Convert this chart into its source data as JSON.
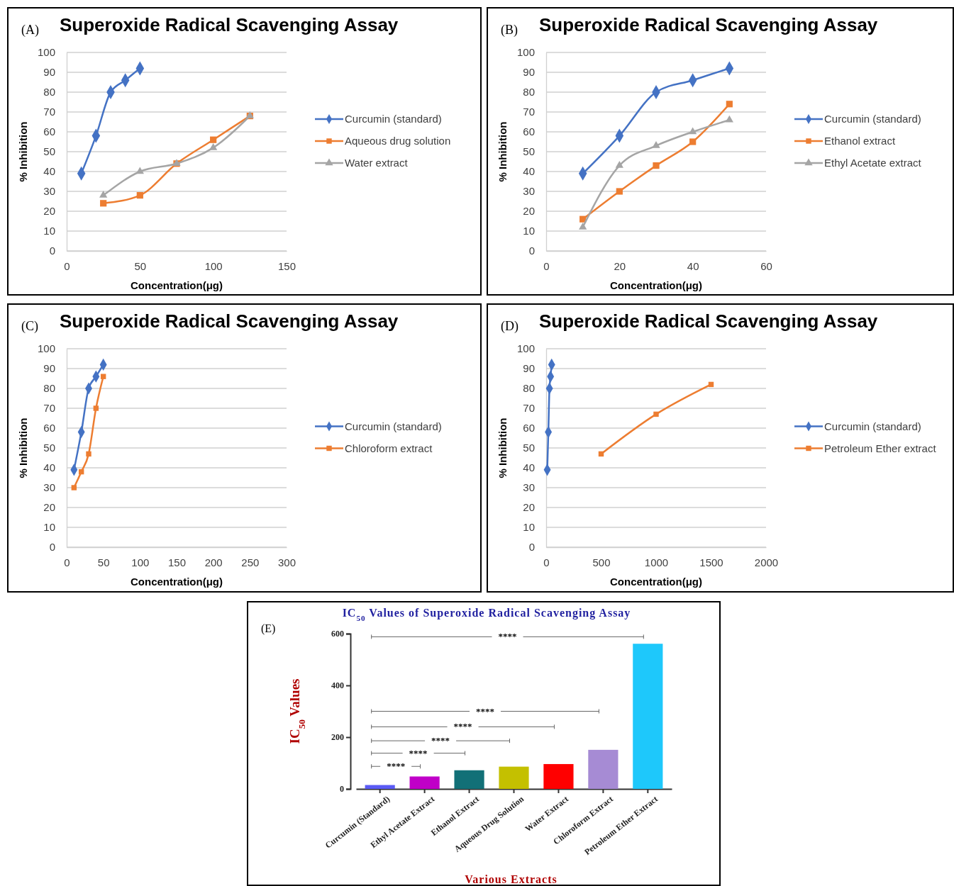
{
  "chart_data": [
    {
      "type": "line",
      "title": "Superoxide Radical Scavenging Assay",
      "xlabel": "Concentration(μg)",
      "ylabel": "% Inhibition",
      "annotations": [
        "(A)"
      ],
      "xlim": [
        0,
        150
      ],
      "xticks": [
        0,
        50,
        100,
        150
      ],
      "ylim": [
        0,
        100
      ],
      "yticks": [
        0,
        10,
        20,
        30,
        40,
        50,
        60,
        70,
        80,
        90,
        100
      ],
      "grid": "y",
      "legend": "right",
      "series": [
        {
          "name": "Curcumin (standard)",
          "color": "#4472c4",
          "marker": "diamond",
          "x": [
            10,
            20,
            30,
            40,
            50
          ],
          "values": [
            39,
            58,
            80,
            86,
            92
          ]
        },
        {
          "name": "Aqueous drug solution",
          "color": "#ed7d31",
          "marker": "square",
          "x": [
            25,
            50,
            75,
            100,
            125
          ],
          "values": [
            24,
            28,
            44,
            56,
            68
          ]
        },
        {
          "name": "Water extract",
          "color": "#a5a5a5",
          "marker": "triangle",
          "x": [
            25,
            50,
            75,
            100,
            125
          ],
          "values": [
            28,
            40,
            44,
            52,
            68
          ]
        }
      ]
    },
    {
      "type": "line",
      "title": "Superoxide Radical Scavenging Assay",
      "xlabel": "Concentration(μg)",
      "ylabel": "% Inhibition",
      "annotations": [
        "(B)"
      ],
      "xlim": [
        0,
        60
      ],
      "xticks": [
        0,
        20,
        40,
        60
      ],
      "ylim": [
        0,
        100
      ],
      "yticks": [
        0,
        10,
        20,
        30,
        40,
        50,
        60,
        70,
        80,
        90,
        100
      ],
      "grid": "y",
      "legend": "right",
      "series": [
        {
          "name": "Curcumin (standard)",
          "color": "#4472c4",
          "marker": "diamond",
          "x": [
            10,
            20,
            30,
            40,
            50
          ],
          "values": [
            39,
            58,
            80,
            86,
            92
          ]
        },
        {
          "name": "Ethanol extract",
          "color": "#ed7d31",
          "marker": "square",
          "x": [
            10,
            20,
            30,
            40,
            50
          ],
          "values": [
            16,
            30,
            43,
            55,
            74
          ]
        },
        {
          "name": "Ethyl Acetate extract",
          "color": "#a5a5a5",
          "marker": "triangle",
          "x": [
            10,
            20,
            30,
            40,
            50
          ],
          "values": [
            12,
            43,
            53,
            60,
            66
          ]
        }
      ]
    },
    {
      "type": "line",
      "title": "Superoxide Radical Scavenging Assay",
      "xlabel": "Concentration(μg)",
      "ylabel": "% Inhibition",
      "annotations": [
        "(C)"
      ],
      "xlim": [
        0,
        300
      ],
      "xticks": [
        0,
        50,
        100,
        150,
        200,
        250,
        300
      ],
      "ylim": [
        0,
        100
      ],
      "yticks": [
        0,
        10,
        20,
        30,
        40,
        50,
        60,
        70,
        80,
        90,
        100
      ],
      "grid": "y",
      "legend": "right",
      "series": [
        {
          "name": "Curcumin (standard)",
          "color": "#4472c4",
          "marker": "diamond",
          "x": [
            10,
            20,
            30,
            40,
            50
          ],
          "values": [
            39,
            58,
            80,
            86,
            92
          ]
        },
        {
          "name": "Chloroform extract",
          "color": "#ed7d31",
          "marker": "square",
          "x": [
            10,
            20,
            30,
            40,
            50
          ],
          "values": [
            30,
            38,
            47,
            70,
            86
          ]
        }
      ]
    },
    {
      "type": "line",
      "title": "Superoxide Radical Scavenging Assay",
      "xlabel": "Concentration(μg)",
      "ylabel": "% Inhibition",
      "annotations": [
        "(D)"
      ],
      "xlim": [
        0,
        2000
      ],
      "xticks": [
        0,
        500,
        1000,
        1500,
        2000
      ],
      "ylim": [
        0,
        100
      ],
      "yticks": [
        0,
        10,
        20,
        30,
        40,
        50,
        60,
        70,
        80,
        90,
        100
      ],
      "grid": "y",
      "legend": "right",
      "series": [
        {
          "name": "Curcumin (standard)",
          "color": "#4472c4",
          "marker": "diamond",
          "x": [
            10,
            20,
            30,
            40,
            50
          ],
          "values": [
            39,
            58,
            80,
            86,
            92
          ]
        },
        {
          "name": "Petroleum Ether extract",
          "color": "#ed7d31",
          "marker": "square",
          "x": [
            500,
            1000,
            1500
          ],
          "values": [
            47,
            67,
            82
          ]
        }
      ]
    },
    {
      "type": "bar",
      "title": "IC$_{50}$ Values of Superoxide Radical Scavenging Assay",
      "xlabel": "Various Extracts",
      "ylabel": "IC$_{50}$ Values",
      "annotations": [
        "(E)",
        "****",
        "****",
        "****",
        "****",
        "****",
        "****"
      ],
      "categories": [
        "Curcumin (Standard)",
        "Ethyl Acetate Extract",
        "Ethanol Extract",
        "Aqueous Drug Solution",
        "Water Extract",
        "Chloroform Extract",
        "Petroleum Ether Extract"
      ],
      "values": [
        15,
        48,
        72,
        86,
        96,
        151,
        561
      ],
      "colors": [
        "#5b5bf5",
        "#c000c8",
        "#127077",
        "#c4c000",
        "#ff0000",
        "#a68bd4",
        "#1ec8fb"
      ],
      "ylim": [
        0,
        600
      ],
      "yticks": [
        0,
        200,
        400,
        600
      ]
    }
  ]
}
